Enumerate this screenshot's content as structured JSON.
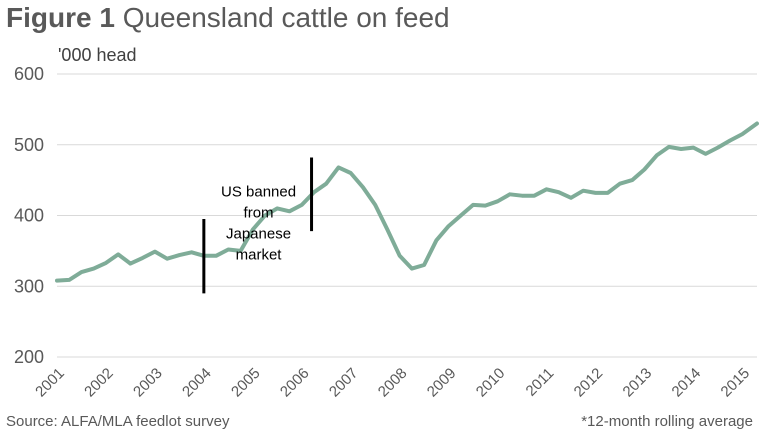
{
  "header": {
    "figure_label": "Figure 1",
    "title_text": "Queensland cattle on feed",
    "unit_label": "'000 head"
  },
  "footer": {
    "source": "Source: ALFA/MLA feedlot survey",
    "note": "*12-month rolling average"
  },
  "colors": {
    "series": "#7fac98",
    "grid": "#d9d9d9",
    "marker": "#000000"
  },
  "chart_data": {
    "type": "line",
    "title": "Figure 1 Queensland cattle on feed",
    "ylabel": "'000 head",
    "xlabel": "",
    "ylim": [
      200,
      600
    ],
    "yticks": [
      200,
      300,
      400,
      500,
      600
    ],
    "xlim": [
      2001,
      2015.3
    ],
    "xticks": [
      "2001",
      "2002",
      "2003",
      "2004",
      "2005",
      "2006",
      "2007",
      "2008",
      "2009",
      "2010",
      "2011",
      "2012",
      "2013",
      "2014",
      "2015"
    ],
    "grid": true,
    "legend": "none",
    "series": [
      {
        "x": [
          2001.0,
          2001.25,
          2001.5,
          2001.75,
          2002.0,
          2002.25,
          2002.5,
          2002.75,
          2003.0,
          2003.25,
          2003.5,
          2003.75,
          2004.0,
          2004.25,
          2004.5,
          2004.75,
          2005.0,
          2005.25,
          2005.5,
          2005.75,
          2006.0,
          2006.25,
          2006.5,
          2006.75,
          2007.0,
          2007.25,
          2007.5,
          2007.75,
          2008.0,
          2008.25,
          2008.5,
          2008.75,
          2009.0,
          2009.25,
          2009.5,
          2009.75,
          2010.0,
          2010.25,
          2010.5,
          2010.75,
          2011.0,
          2011.25,
          2011.5,
          2011.75,
          2012.0,
          2012.25,
          2012.5,
          2012.75,
          2013.0,
          2013.25,
          2013.5,
          2013.75,
          2014.0,
          2014.25,
          2014.5,
          2014.75,
          2015.0,
          2015.3
        ],
        "values": [
          308,
          309,
          320,
          325,
          333,
          345,
          332,
          340,
          349,
          339,
          344,
          348,
          343,
          343,
          352,
          350,
          380,
          400,
          410,
          406,
          415,
          433,
          445,
          468,
          460,
          440,
          415,
          380,
          343,
          325,
          330,
          365,
          385,
          400,
          415,
          414,
          420,
          430,
          428,
          428,
          437,
          433,
          425,
          435,
          432,
          432,
          445,
          450,
          465,
          485,
          497,
          494,
          496,
          487,
          496,
          506,
          515,
          530
        ]
      }
    ],
    "annotations": [
      {
        "x": 2004.0,
        "y_from": 290,
        "y_to": 395,
        "label_lines": []
      },
      {
        "x": 2006.2,
        "y_from": 378,
        "y_to": 482,
        "label_lines": [
          "US banned",
          "from",
          "Japanese",
          "market"
        ]
      }
    ]
  }
}
